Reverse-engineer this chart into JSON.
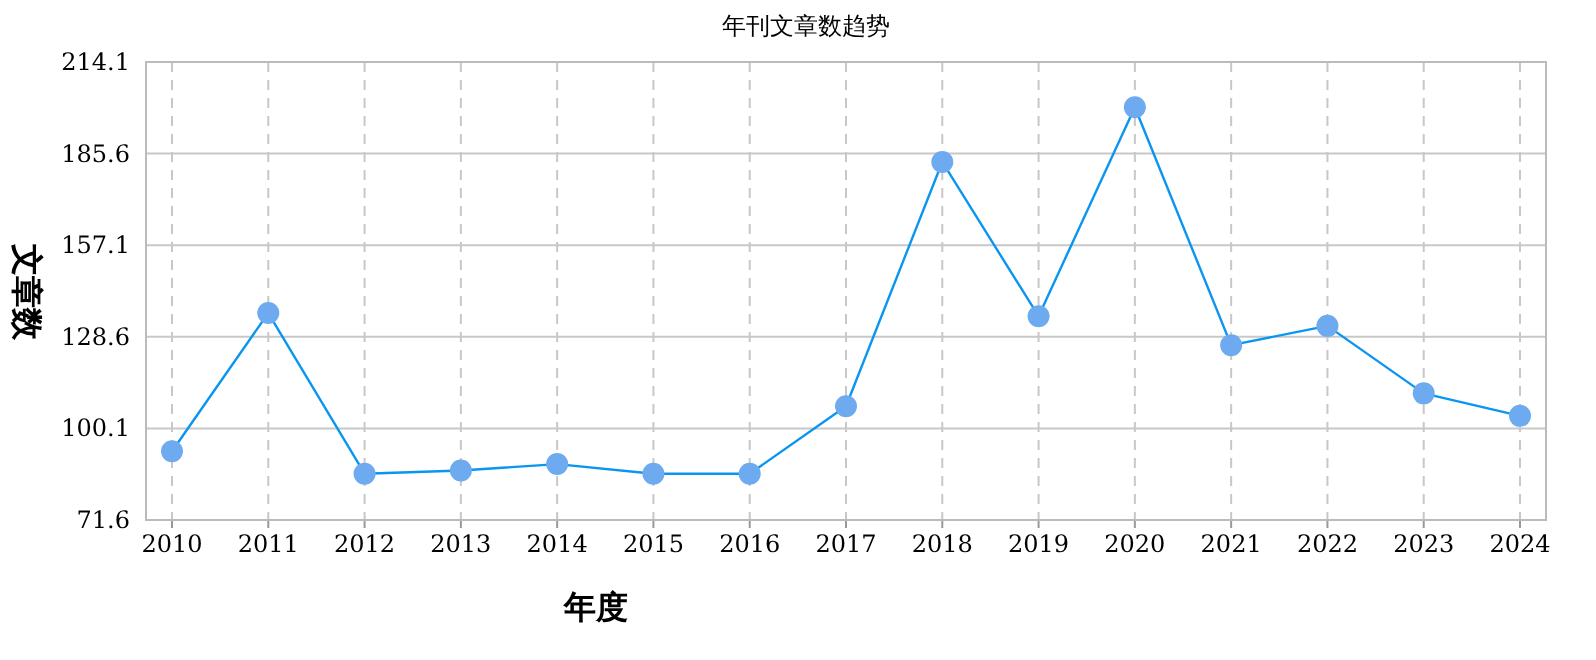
{
  "chart_data": {
    "type": "line",
    "title": "年刊文章数趋势",
    "xlabel": "年度",
    "ylabel": "文章数",
    "categories": [
      "2010",
      "2011",
      "2012",
      "2013",
      "2014",
      "2015",
      "2016",
      "2017",
      "2018",
      "2019",
      "2020",
      "2021",
      "2022",
      "2023",
      "2024"
    ],
    "series": [
      {
        "color": "#0a96f0",
        "values": [
          93,
          136,
          86,
          87,
          89,
          86,
          86,
          107,
          183,
          135,
          200,
          126,
          132,
          111,
          104
        ]
      }
    ],
    "ylim": [
      71.6,
      214.1
    ],
    "yticks": [
      71.6,
      100.1,
      128.6,
      157.1,
      185.6,
      214.1
    ],
    "grid": true,
    "marker": "circle",
    "line_style": "solid"
  }
}
